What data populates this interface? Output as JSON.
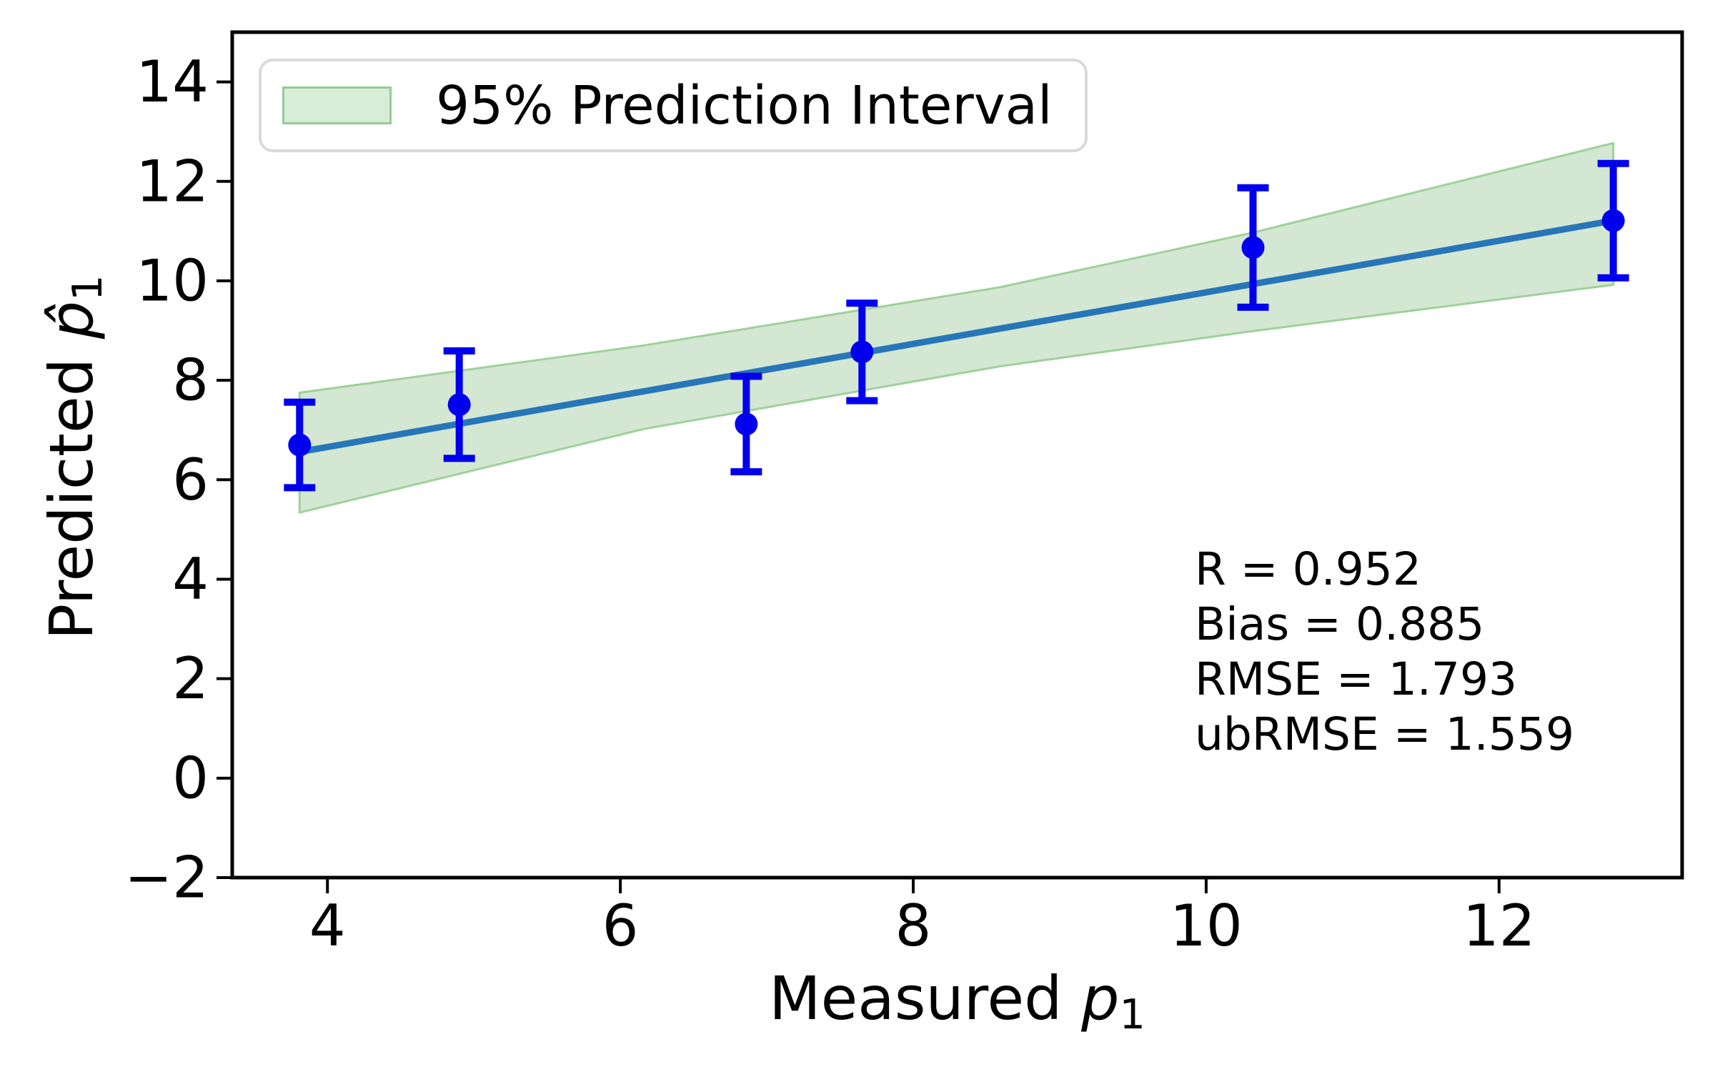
{
  "chart_data": {
    "type": "scatter",
    "title": "",
    "xlabel_parts": {
      "prefix": "Measured ",
      "var": "p",
      "sub": "1"
    },
    "ylabel_parts": {
      "prefix": "Predicted ",
      "var": "p̂",
      "sub": "1"
    },
    "xlim": [
      3.35,
      13.25
    ],
    "ylim": [
      -2,
      15
    ],
    "xticks": [
      4,
      6,
      8,
      10,
      12
    ],
    "yticks": [
      14,
      12,
      10,
      8,
      6,
      4,
      2,
      0,
      -2
    ],
    "grid": false,
    "legend_position": "upper left",
    "legend_label": "95% Prediction Interval",
    "stats_lines": [
      "R = 0.952",
      "Bias = 0.885",
      "RMSE = 1.793",
      "ubRMSE = 1.559"
    ],
    "points": [
      {
        "x": 3.81,
        "y": 6.7,
        "yerr": 0.86
      },
      {
        "x": 4.9,
        "y": 7.51,
        "yerr": 1.08
      },
      {
        "x": 6.86,
        "y": 7.12,
        "yerr": 0.96
      },
      {
        "x": 7.65,
        "y": 8.57,
        "yerr": 0.98
      },
      {
        "x": 10.32,
        "y": 10.67,
        "yerr": 1.2
      },
      {
        "x": 12.78,
        "y": 11.21,
        "yerr": 1.15
      }
    ],
    "fit_line": {
      "x_start": 3.81,
      "y_start": 6.56,
      "x_end": 12.78,
      "y_end": 11.21
    },
    "band": {
      "x": [
        3.81,
        6.16,
        8.59,
        10.32,
        12.78
      ],
      "lower": [
        5.34,
        7.02,
        8.28,
        8.99,
        9.92
      ],
      "upper": [
        7.75,
        8.7,
        9.87,
        10.97,
        12.77
      ]
    },
    "colors": {
      "marker": "#0000ee",
      "error_bar": "#0000ee",
      "fit_line": "#2777b8",
      "band_fill": "#d4e7d2",
      "band_edge": "#9ed19c",
      "legend_swatch_fill": "#d9ecd7",
      "legend_swatch_edge": "#95cb95",
      "legend_border": "#d9d9d9",
      "spine": "#000000",
      "text": "#000000"
    }
  }
}
